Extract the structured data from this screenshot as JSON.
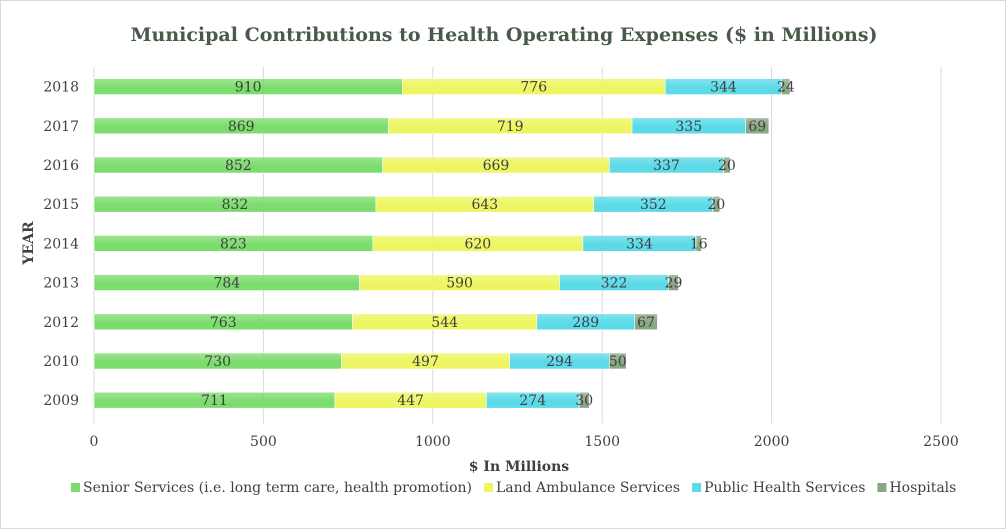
{
  "chart_data": {
    "type": "bar",
    "orientation": "horizontal",
    "stacked": true,
    "title": "Municipal Contributions to Health Operating Expenses ($ in Millions)",
    "xlabel": "$ In Millions",
    "ylabel": "YEAR",
    "categories": [
      "2018",
      "2017",
      "2016",
      "2015",
      "2014",
      "2013",
      "2012",
      "2010",
      "2009"
    ],
    "xlim": [
      0,
      2500
    ],
    "xticks": [
      "0",
      "500",
      "1000",
      "1500",
      "2000",
      "2500"
    ],
    "grid": "vertical",
    "legend_position": "bottom",
    "series": [
      {
        "name": "Senior Services (i.e. long term care, health promotion)",
        "color": "#7ddc6e",
        "values": [
          910,
          869,
          852,
          832,
          823,
          784,
          763,
          730,
          711
        ]
      },
      {
        "name": "Land Ambulance Services",
        "color": "#eef562",
        "values": [
          776,
          719,
          669,
          643,
          620,
          590,
          544,
          497,
          447
        ]
      },
      {
        "name": "Public Health Services",
        "color": "#5cdae8",
        "values": [
          344,
          335,
          337,
          352,
          334,
          322,
          289,
          294,
          274
        ]
      },
      {
        "name": "Hospitals",
        "color": "#8aa784",
        "values": [
          24,
          69,
          20,
          20,
          16,
          29,
          67,
          50,
          30
        ]
      }
    ]
  }
}
